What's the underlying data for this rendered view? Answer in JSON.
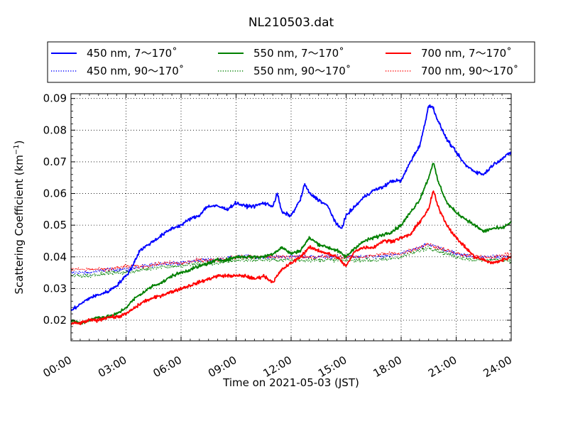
{
  "chart_data": {
    "type": "line",
    "title": "NL210503.dat",
    "xlabel": "Time on 2021-05-03 (JST)",
    "ylabel": "Scattering Coefficient (km",
    "ylabel_sup": "−1",
    "ylabel_close": ")",
    "xlim": [
      0,
      24
    ],
    "ylim": [
      0.0135,
      0.0915
    ],
    "x_ticks": [
      0,
      3,
      6,
      9,
      12,
      15,
      18,
      21,
      24
    ],
    "x_tick_labels": [
      "00:00",
      "03:00",
      "06:00",
      "09:00",
      "12:00",
      "15:00",
      "18:00",
      "21:00",
      "24:00"
    ],
    "y_ticks": [
      0.02,
      0.03,
      0.04,
      0.05,
      0.06,
      0.07,
      0.08,
      0.09
    ],
    "y_tick_labels": [
      "0.02",
      "0.03",
      "0.04",
      "0.05",
      "0.06",
      "0.07",
      "0.08",
      "0.09"
    ],
    "grid": true,
    "legend_position": "top, above plot",
    "series": [
      {
        "name": "450 nm, 7～170˚",
        "color": "#0000ff",
        "style": "solid",
        "x": [
          0,
          0.5,
          1,
          1.5,
          2,
          2.5,
          3,
          3.25,
          3.5,
          3.75,
          4,
          4.5,
          5,
          5.5,
          6,
          6.5,
          7,
          7.25,
          7.5,
          8,
          8.5,
          9,
          9.5,
          10,
          10.5,
          11,
          11.25,
          11.5,
          12,
          12.5,
          12.75,
          13,
          13.5,
          14,
          14.5,
          14.75,
          15,
          15.5,
          16,
          16.5,
          17,
          17.5,
          18,
          18.5,
          19,
          19.3,
          19.5,
          19.75,
          20,
          20.5,
          21,
          21.5,
          22,
          22.5,
          23,
          23.5,
          24
        ],
        "y": [
          0.023,
          0.025,
          0.027,
          0.028,
          0.029,
          0.031,
          0.034,
          0.036,
          0.039,
          0.042,
          0.043,
          0.045,
          0.047,
          0.049,
          0.05,
          0.052,
          0.053,
          0.055,
          0.056,
          0.056,
          0.055,
          0.057,
          0.056,
          0.056,
          0.057,
          0.056,
          0.06,
          0.054,
          0.053,
          0.058,
          0.063,
          0.06,
          0.058,
          0.056,
          0.05,
          0.049,
          0.053,
          0.056,
          0.059,
          0.061,
          0.062,
          0.064,
          0.064,
          0.07,
          0.075,
          0.082,
          0.088,
          0.087,
          0.083,
          0.077,
          0.073,
          0.069,
          0.067,
          0.066,
          0.069,
          0.071,
          0.073
        ]
      },
      {
        "name": "450 nm, 90～170˚",
        "color": "#0000ff",
        "style": "dotted",
        "x": [
          0,
          1,
          2,
          3,
          4,
          5,
          6,
          7,
          8,
          9,
          10,
          11,
          12,
          13,
          14,
          15,
          16,
          17,
          18,
          19,
          19.5,
          20,
          21,
          22,
          23,
          24
        ],
        "y": [
          0.035,
          0.035,
          0.036,
          0.036,
          0.037,
          0.038,
          0.038,
          0.039,
          0.039,
          0.04,
          0.04,
          0.04,
          0.04,
          0.04,
          0.04,
          0.04,
          0.04,
          0.04,
          0.041,
          0.043,
          0.044,
          0.043,
          0.041,
          0.04,
          0.04,
          0.04
        ]
      },
      {
        "name": "550 nm, 7～170˚",
        "color": "#008000",
        "style": "solid",
        "x": [
          0,
          0.5,
          1,
          1.5,
          2,
          2.5,
          3,
          3.5,
          4,
          4.5,
          5,
          5.5,
          6,
          6.5,
          7,
          7.5,
          8,
          8.5,
          9,
          9.5,
          10,
          10.5,
          11,
          11.5,
          12,
          12.5,
          13,
          13.5,
          14,
          14.5,
          15,
          15.5,
          16,
          16.5,
          17,
          17.5,
          18,
          18.5,
          19,
          19.5,
          19.75,
          20,
          20.5,
          21,
          21.5,
          22,
          22.5,
          23,
          23.5,
          24
        ],
        "y": [
          0.02,
          0.019,
          0.02,
          0.021,
          0.021,
          0.022,
          0.024,
          0.027,
          0.029,
          0.031,
          0.032,
          0.034,
          0.035,
          0.036,
          0.037,
          0.038,
          0.039,
          0.039,
          0.04,
          0.04,
          0.04,
          0.04,
          0.041,
          0.043,
          0.041,
          0.042,
          0.046,
          0.044,
          0.043,
          0.042,
          0.04,
          0.043,
          0.045,
          0.046,
          0.047,
          0.048,
          0.05,
          0.054,
          0.058,
          0.065,
          0.07,
          0.064,
          0.057,
          0.054,
          0.052,
          0.05,
          0.048,
          0.049,
          0.049,
          0.051
        ]
      },
      {
        "name": "550 nm, 90～170˚",
        "color": "#008000",
        "style": "dotted",
        "x": [
          0,
          1,
          2,
          3,
          4,
          5,
          6,
          7,
          8,
          9,
          10,
          11,
          12,
          13,
          14,
          15,
          16,
          17,
          18,
          19,
          19.5,
          20,
          21,
          22,
          23,
          24
        ],
        "y": [
          0.034,
          0.034,
          0.035,
          0.035,
          0.036,
          0.037,
          0.037,
          0.038,
          0.038,
          0.039,
          0.039,
          0.039,
          0.039,
          0.039,
          0.039,
          0.039,
          0.039,
          0.039,
          0.04,
          0.042,
          0.043,
          0.042,
          0.04,
          0.039,
          0.039,
          0.039
        ]
      },
      {
        "name": "700 nm, 7～170˚",
        "color": "#ff0000",
        "style": "solid",
        "x": [
          0,
          0.5,
          1,
          1.5,
          2,
          2.5,
          3,
          3.5,
          4,
          4.5,
          5,
          5.5,
          6,
          6.5,
          7,
          7.5,
          8,
          8.5,
          9,
          9.5,
          10,
          10.5,
          11,
          11.5,
          12,
          12.5,
          13,
          13.5,
          14,
          14.5,
          15,
          15.5,
          16,
          16.5,
          17,
          17.5,
          18,
          18.5,
          19,
          19.5,
          19.75,
          20,
          20.5,
          21,
          21.5,
          22,
          22.5,
          23,
          23.5,
          24
        ],
        "y": [
          0.019,
          0.019,
          0.02,
          0.02,
          0.021,
          0.021,
          0.022,
          0.024,
          0.026,
          0.027,
          0.028,
          0.029,
          0.03,
          0.031,
          0.032,
          0.033,
          0.034,
          0.034,
          0.034,
          0.034,
          0.033,
          0.034,
          0.032,
          0.036,
          0.038,
          0.04,
          0.043,
          0.042,
          0.041,
          0.04,
          0.037,
          0.042,
          0.043,
          0.043,
          0.045,
          0.045,
          0.046,
          0.047,
          0.051,
          0.055,
          0.061,
          0.056,
          0.05,
          0.046,
          0.043,
          0.04,
          0.039,
          0.038,
          0.039,
          0.04
        ]
      },
      {
        "name": "700 nm, 90～170˚",
        "color": "#ff0000",
        "style": "dotted",
        "x": [
          0,
          1,
          2,
          3,
          4,
          5,
          6,
          7,
          8,
          9,
          10,
          11,
          12,
          13,
          14,
          15,
          16,
          17,
          18,
          19,
          19.5,
          20,
          21,
          22,
          23,
          24
        ],
        "y": [
          0.036,
          0.036,
          0.036,
          0.037,
          0.037,
          0.038,
          0.038,
          0.039,
          0.039,
          0.04,
          0.04,
          0.04,
          0.04,
          0.04,
          0.04,
          0.04,
          0.04,
          0.041,
          0.041,
          0.043,
          0.044,
          0.043,
          0.041,
          0.04,
          0.04,
          0.041
        ]
      }
    ]
  }
}
